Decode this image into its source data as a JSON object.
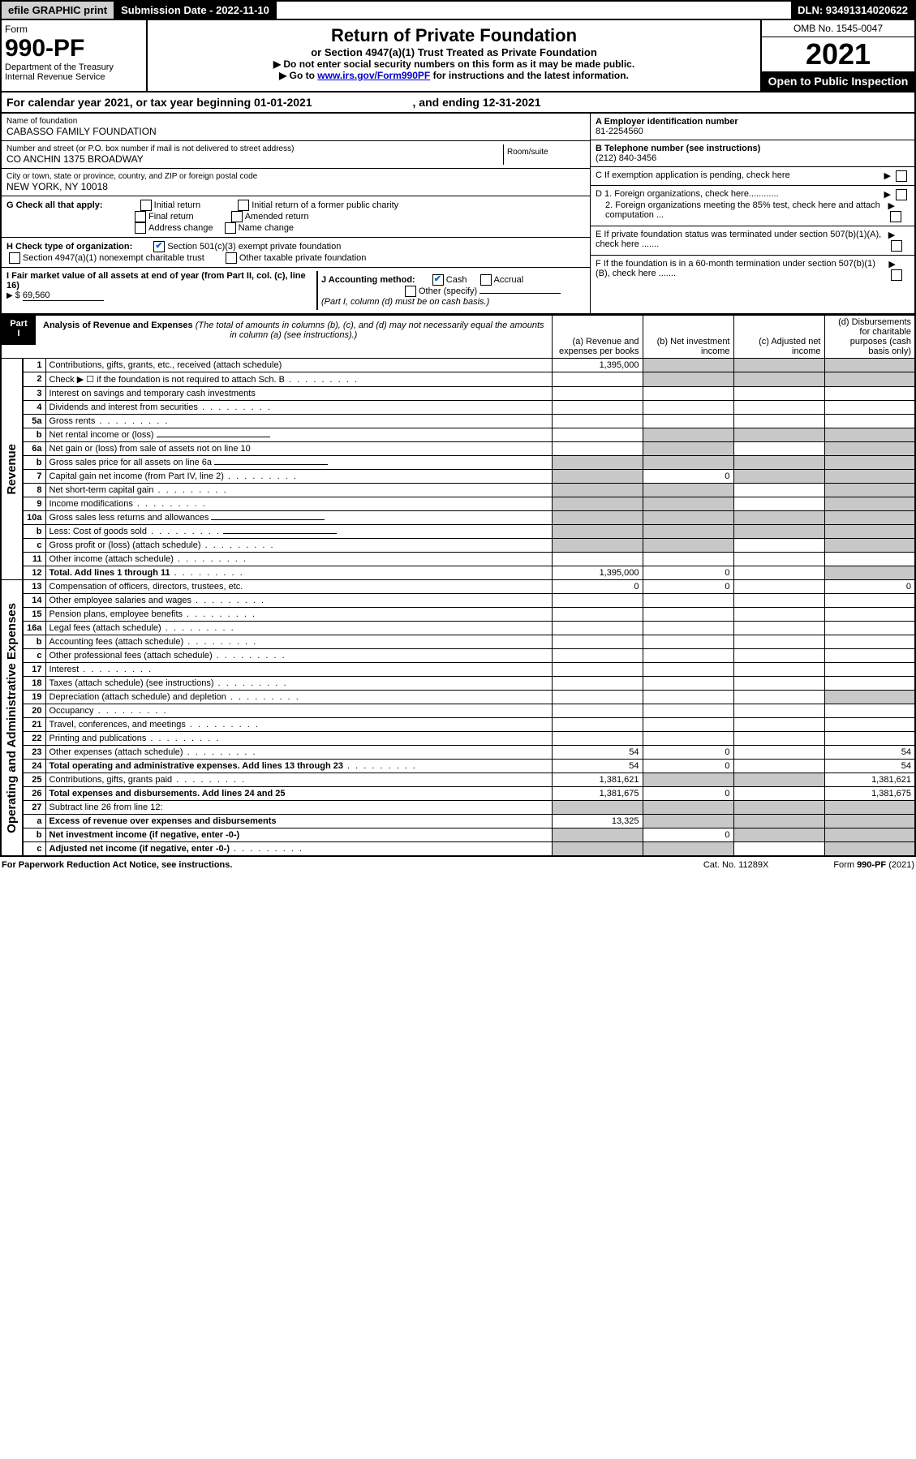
{
  "topbar": {
    "efile": "efile GRAPHIC print",
    "sub_label": "Submission Date - 2022-11-10",
    "dln": "DLN: 93491314020622"
  },
  "header": {
    "form_word": "Form",
    "form_no": "990-PF",
    "dept": "Department of the Treasury",
    "irs": "Internal Revenue Service",
    "title1": "Return of Private Foundation",
    "title2": "or Section 4947(a)(1) Trust Treated as Private Foundation",
    "instr1": "▶ Do not enter social security numbers on this form as it may be made public.",
    "instr2_pre": "▶ Go to ",
    "instr2_link": "www.irs.gov/Form990PF",
    "instr2_post": " for instructions and the latest information.",
    "omb": "OMB No. 1545-0047",
    "year": "2021",
    "inspect": "Open to Public Inspection"
  },
  "calyear": {
    "pre": "For calendar year 2021, or tax year beginning ",
    "begin": "01-01-2021",
    "mid": " , and ending ",
    "end": "12-31-2021"
  },
  "id": {
    "name_lbl": "Name of foundation",
    "name": "CABASSO FAMILY FOUNDATION",
    "addr_lbl": "Number and street (or P.O. box number if mail is not delivered to street address)",
    "addr": "CO ANCHIN 1375 BROADWAY",
    "room_lbl": "Room/suite",
    "city_lbl": "City or town, state or province, country, and ZIP or foreign postal code",
    "city": "NEW YORK, NY  10018",
    "A_lbl": "A Employer identification number",
    "A": "81-2254560",
    "B_lbl": "B Telephone number (see instructions)",
    "B": "(212) 840-3456",
    "C": "C If exemption application is pending, check here",
    "D1": "D 1. Foreign organizations, check here............",
    "D2": "2. Foreign organizations meeting the 85% test, check here and attach computation ...",
    "E": "E  If private foundation status was terminated under section 507(b)(1)(A), check here .......",
    "F": "F  If the foundation is in a 60-month termination under section 507(b)(1)(B), check here .......",
    "G_lbl": "G Check all that apply:",
    "G": [
      "Initial return",
      "Initial return of a former public charity",
      "Final return",
      "Amended return",
      "Address change",
      "Name change"
    ],
    "H_lbl": "H Check type of organization:",
    "H1": "Section 501(c)(3) exempt private foundation",
    "H2": "Section 4947(a)(1) nonexempt charitable trust",
    "H3": "Other taxable private foundation",
    "I_lbl": "I Fair market value of all assets at end of year (from Part II, col. (c), line 16)",
    "I_val": "69,560",
    "J_lbl": "J Accounting method:",
    "J1": "Cash",
    "J2": "Accrual",
    "J3": "Other (specify)",
    "J_note": "(Part I, column (d) must be on cash basis.)"
  },
  "part1": {
    "label": "Part I",
    "title": "Analysis of Revenue and Expenses",
    "title_note": "(The total of amounts in columns (b), (c), and (d) may not necessarily equal the amounts in column (a) (see instructions).)",
    "col_a": "(a)   Revenue and expenses per books",
    "col_b": "(b)   Net investment income",
    "col_c": "(c)   Adjusted net income",
    "col_d": "(d)   Disbursements for charitable purposes (cash basis only)",
    "side_rev": "Revenue",
    "side_exp": "Operating and Administrative Expenses"
  },
  "rows": [
    {
      "n": "1",
      "d": "Contributions, gifts, grants, etc., received (attach schedule)",
      "a": "1,395,000",
      "grb": 1,
      "grc": 1,
      "grd": 1
    },
    {
      "n": "2",
      "d": "Check ▶ ☐ if the foundation is not required to attach Sch. B",
      "dots": 1,
      "noa": 1,
      "grb": 1,
      "grc": 1,
      "grd": 1
    },
    {
      "n": "3",
      "d": "Interest on savings and temporary cash investments"
    },
    {
      "n": "4",
      "d": "Dividends and interest from securities",
      "dots": 1
    },
    {
      "n": "5a",
      "d": "Gross rents",
      "dots": 1
    },
    {
      "n": "b",
      "d": "Net rental income or (loss)",
      "under": 1,
      "grb": 1,
      "grc": 1,
      "grd": 1
    },
    {
      "n": "6a",
      "d": "Net gain or (loss) from sale of assets not on line 10",
      "grb": 1,
      "grd": 1
    },
    {
      "n": "b",
      "d": "Gross sales price for all assets on line 6a",
      "under": 1,
      "gra": 1,
      "grb": 1,
      "grc": 1,
      "grd": 1
    },
    {
      "n": "7",
      "d": "Capital gain net income (from Part IV, line 2)",
      "dots": 1,
      "gra": 1,
      "b": "0",
      "grc": 1,
      "grd": 1
    },
    {
      "n": "8",
      "d": "Net short-term capital gain",
      "dots": 1,
      "gra": 1,
      "grb": 1,
      "grd": 1
    },
    {
      "n": "9",
      "d": "Income modifications",
      "dots": 1,
      "gra": 1,
      "grb": 1,
      "grd": 1
    },
    {
      "n": "10a",
      "d": "Gross sales less returns and allowances",
      "under": 1,
      "gra": 1,
      "grb": 1,
      "grc": 1,
      "grd": 1
    },
    {
      "n": "b",
      "d": "Less: Cost of goods sold",
      "dots": 1,
      "under": 1,
      "gra": 1,
      "grb": 1,
      "grc": 1,
      "grd": 1
    },
    {
      "n": "c",
      "d": "Gross profit or (loss) (attach schedule)",
      "dots": 1,
      "gra": 1,
      "grb": 1,
      "grd": 1
    },
    {
      "n": "11",
      "d": "Other income (attach schedule)",
      "dots": 1
    },
    {
      "n": "12",
      "d": "Total. Add lines 1 through 11",
      "dots": 1,
      "bold": 1,
      "a": "1,395,000",
      "b": "0",
      "grd": 1
    },
    {
      "n": "13",
      "d": "Compensation of officers, directors, trustees, etc.",
      "a": "0",
      "b": "0",
      "dd": "0"
    },
    {
      "n": "14",
      "d": "Other employee salaries and wages",
      "dots": 1
    },
    {
      "n": "15",
      "d": "Pension plans, employee benefits",
      "dots": 1
    },
    {
      "n": "16a",
      "d": "Legal fees (attach schedule)",
      "dots": 1
    },
    {
      "n": "b",
      "d": "Accounting fees (attach schedule)",
      "dots": 1
    },
    {
      "n": "c",
      "d": "Other professional fees (attach schedule)",
      "dots": 1
    },
    {
      "n": "17",
      "d": "Interest",
      "dots": 1
    },
    {
      "n": "18",
      "d": "Taxes (attach schedule) (see instructions)",
      "dots": 1
    },
    {
      "n": "19",
      "d": "Depreciation (attach schedule) and depletion",
      "dots": 1,
      "grd": 1
    },
    {
      "n": "20",
      "d": "Occupancy",
      "dots": 1
    },
    {
      "n": "21",
      "d": "Travel, conferences, and meetings",
      "dots": 1
    },
    {
      "n": "22",
      "d": "Printing and publications",
      "dots": 1
    },
    {
      "n": "23",
      "d": "Other expenses (attach schedule)",
      "dots": 1,
      "a": "54",
      "b": "0",
      "dd": "54"
    },
    {
      "n": "24",
      "d": "Total operating and administrative expenses. Add lines 13 through 23",
      "dots": 1,
      "bold": 1,
      "a": "54",
      "b": "0",
      "dd": "54"
    },
    {
      "n": "25",
      "d": "Contributions, gifts, grants paid",
      "dots": 1,
      "a": "1,381,621",
      "grb": 1,
      "grc": 1,
      "dd": "1,381,621"
    },
    {
      "n": "26",
      "d": "Total expenses and disbursements. Add lines 24 and 25",
      "bold": 1,
      "a": "1,381,675",
      "b": "0",
      "dd": "1,381,675"
    },
    {
      "n": "27",
      "d": "Subtract line 26 from line 12:",
      "gra": 1,
      "grb": 1,
      "grc": 1,
      "grd": 1
    },
    {
      "n": "a",
      "d": "Excess of revenue over expenses and disbursements",
      "bold": 1,
      "a": "13,325",
      "grb": 1,
      "grc": 1,
      "grd": 1
    },
    {
      "n": "b",
      "d": "Net investment income (if negative, enter -0-)",
      "bold": 1,
      "gra": 1,
      "b": "0",
      "grc": 1,
      "grd": 1
    },
    {
      "n": "c",
      "d": "Adjusted net income (if negative, enter -0-)",
      "dots": 1,
      "bold": 1,
      "gra": 1,
      "grb": 1,
      "grd": 1
    }
  ],
  "footer": {
    "left": "For Paperwork Reduction Act Notice, see instructions.",
    "mid": "Cat. No. 11289X",
    "right": "Form 990-PF (2021)"
  }
}
